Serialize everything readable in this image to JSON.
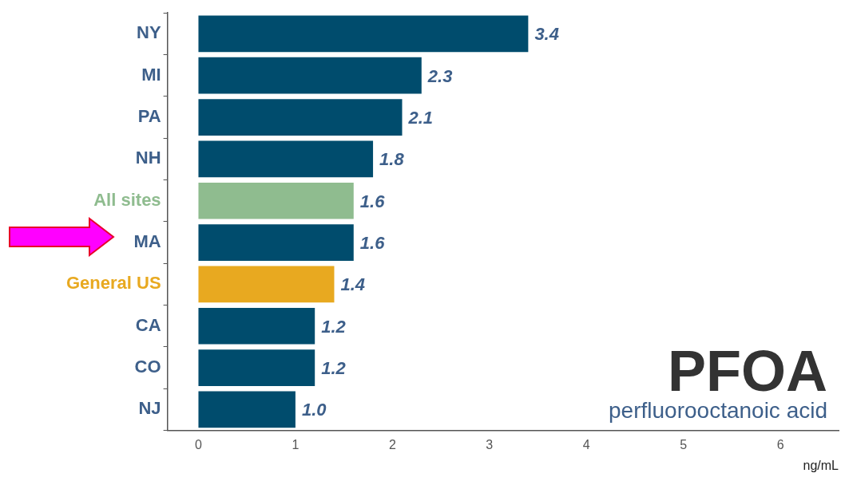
{
  "chart_data": {
    "type": "bar",
    "orientation": "horizontal",
    "title": "PFOA",
    "subtitle": "perfluorooctanoic acid",
    "xlabel": "ng/mL",
    "categories": [
      "NY",
      "MI",
      "PA",
      "NH",
      "All sites",
      "MA",
      "General US",
      "CA",
      "CO",
      "NJ"
    ],
    "values": [
      3.4,
      2.3,
      2.1,
      1.8,
      1.6,
      1.6,
      1.4,
      1.2,
      1.2,
      1.0
    ],
    "colors": [
      "#004c6d",
      "#004c6d",
      "#004c6d",
      "#004c6d",
      "#8fbc8f",
      "#004c6d",
      "#e8a920",
      "#004c6d",
      "#004c6d",
      "#004c6d"
    ],
    "value_labels": [
      "3.4",
      "2.3",
      "2.1",
      "1.8",
      "1.6",
      "1.6",
      "1.4",
      "1.2",
      "1.2",
      "1.0"
    ],
    "xlim": [
      -0.32,
      6.6
    ],
    "xticks": [
      0,
      1,
      2,
      3,
      4,
      5,
      6
    ],
    "grid": false,
    "legend": false
  }
}
